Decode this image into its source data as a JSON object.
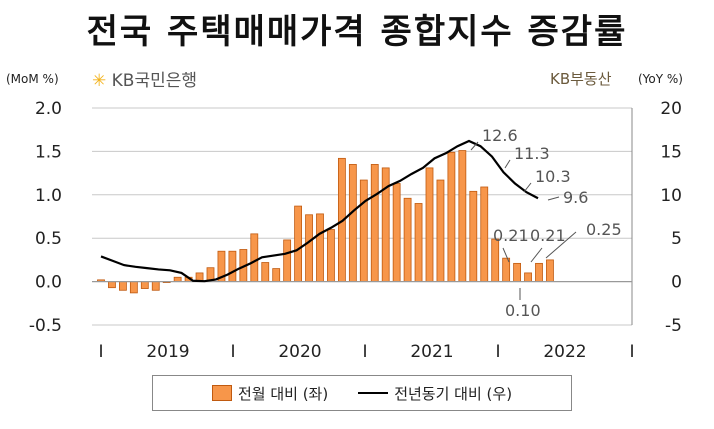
{
  "title": "전국 주택매매가격 종합지수 증감률",
  "left_unit": "(MoM %)",
  "right_unit": "(YoY %)",
  "logo_left": "KB국민은행",
  "logo_right": "KB부동산",
  "colors": {
    "bar_fill": "#f7964a",
    "bar_stroke": "#c05a10",
    "line": "#000000",
    "grid": "#c8c8c8"
  },
  "chart_data": {
    "type": "bar",
    "title": "전국 주택매매가격 종합지수 증감률",
    "grid": true,
    "legend_position": "bottom",
    "x_tick_labels": [
      "I",
      "2019",
      "I",
      "2020",
      "I",
      "2021",
      "I",
      "2022",
      "I"
    ],
    "y_left": {
      "label": "(MoM %)",
      "ylim": [
        -0.5,
        2.0
      ],
      "ticks": [
        "2.0",
        "1.5",
        "1.0",
        "0.5",
        "0.0",
        "-0.5"
      ]
    },
    "y_right": {
      "label": "(YoY %)",
      "ylim": [
        -5,
        20
      ],
      "ticks": [
        "20",
        "15",
        "10",
        "5",
        "0",
        "-5"
      ]
    },
    "series": [
      {
        "name": "전월 대비 (좌)",
        "type": "bar",
        "axis": "left",
        "values": [
          0.02,
          -0.07,
          -0.1,
          -0.13,
          -0.08,
          -0.1,
          0.0,
          0.05,
          0.05,
          0.1,
          0.16,
          0.35,
          0.35,
          0.37,
          0.55,
          0.22,
          0.15,
          0.48,
          0.87,
          0.77,
          0.78,
          0.6,
          1.42,
          1.35,
          1.17,
          1.35,
          1.31,
          1.13,
          0.96,
          0.9,
          1.31,
          1.17,
          1.49,
          1.51,
          1.04,
          1.09,
          0.49,
          0.27,
          0.21,
          0.1,
          0.21,
          0.25
        ]
      },
      {
        "name": "전년동기 대비 (우)",
        "type": "line",
        "axis": "right",
        "values": [
          2.9,
          2.4,
          1.9,
          1.7,
          1.55,
          1.4,
          1.3,
          1.0,
          0.1,
          0.05,
          0.25,
          0.8,
          1.5,
          2.1,
          2.8,
          3.0,
          3.2,
          3.6,
          4.5,
          5.5,
          6.2,
          7.0,
          8.2,
          9.3,
          10.1,
          11.0,
          11.6,
          12.4,
          13.1,
          14.2,
          14.8,
          15.6,
          16.2,
          15.6,
          14.4,
          12.6,
          11.3,
          10.3,
          9.6
        ]
      }
    ],
    "annotations": [
      {
        "series": "전년동기 대비 (우)",
        "text": "12.6",
        "value": 12.6
      },
      {
        "series": "전년동기 대비 (우)",
        "text": "11.3",
        "value": 11.3
      },
      {
        "series": "전년동기 대비 (우)",
        "text": "10.3",
        "value": 10.3
      },
      {
        "series": "전년동기 대비 (우)",
        "text": "9.6",
        "value": 9.6
      },
      {
        "series": "전월 대비 (좌)",
        "text": "0.21",
        "value": 0.21
      },
      {
        "series": "전월 대비 (좌)",
        "text": "0.10",
        "value": 0.1
      },
      {
        "series": "전월 대비 (좌)",
        "text": "0.21",
        "value": 0.21
      },
      {
        "series": "전월 대비 (좌)",
        "text": "0.25",
        "value": 0.25
      }
    ]
  },
  "legend": {
    "bar_label": "전월 대비 (좌)",
    "line_label": "전년동기 대비 (우)"
  }
}
